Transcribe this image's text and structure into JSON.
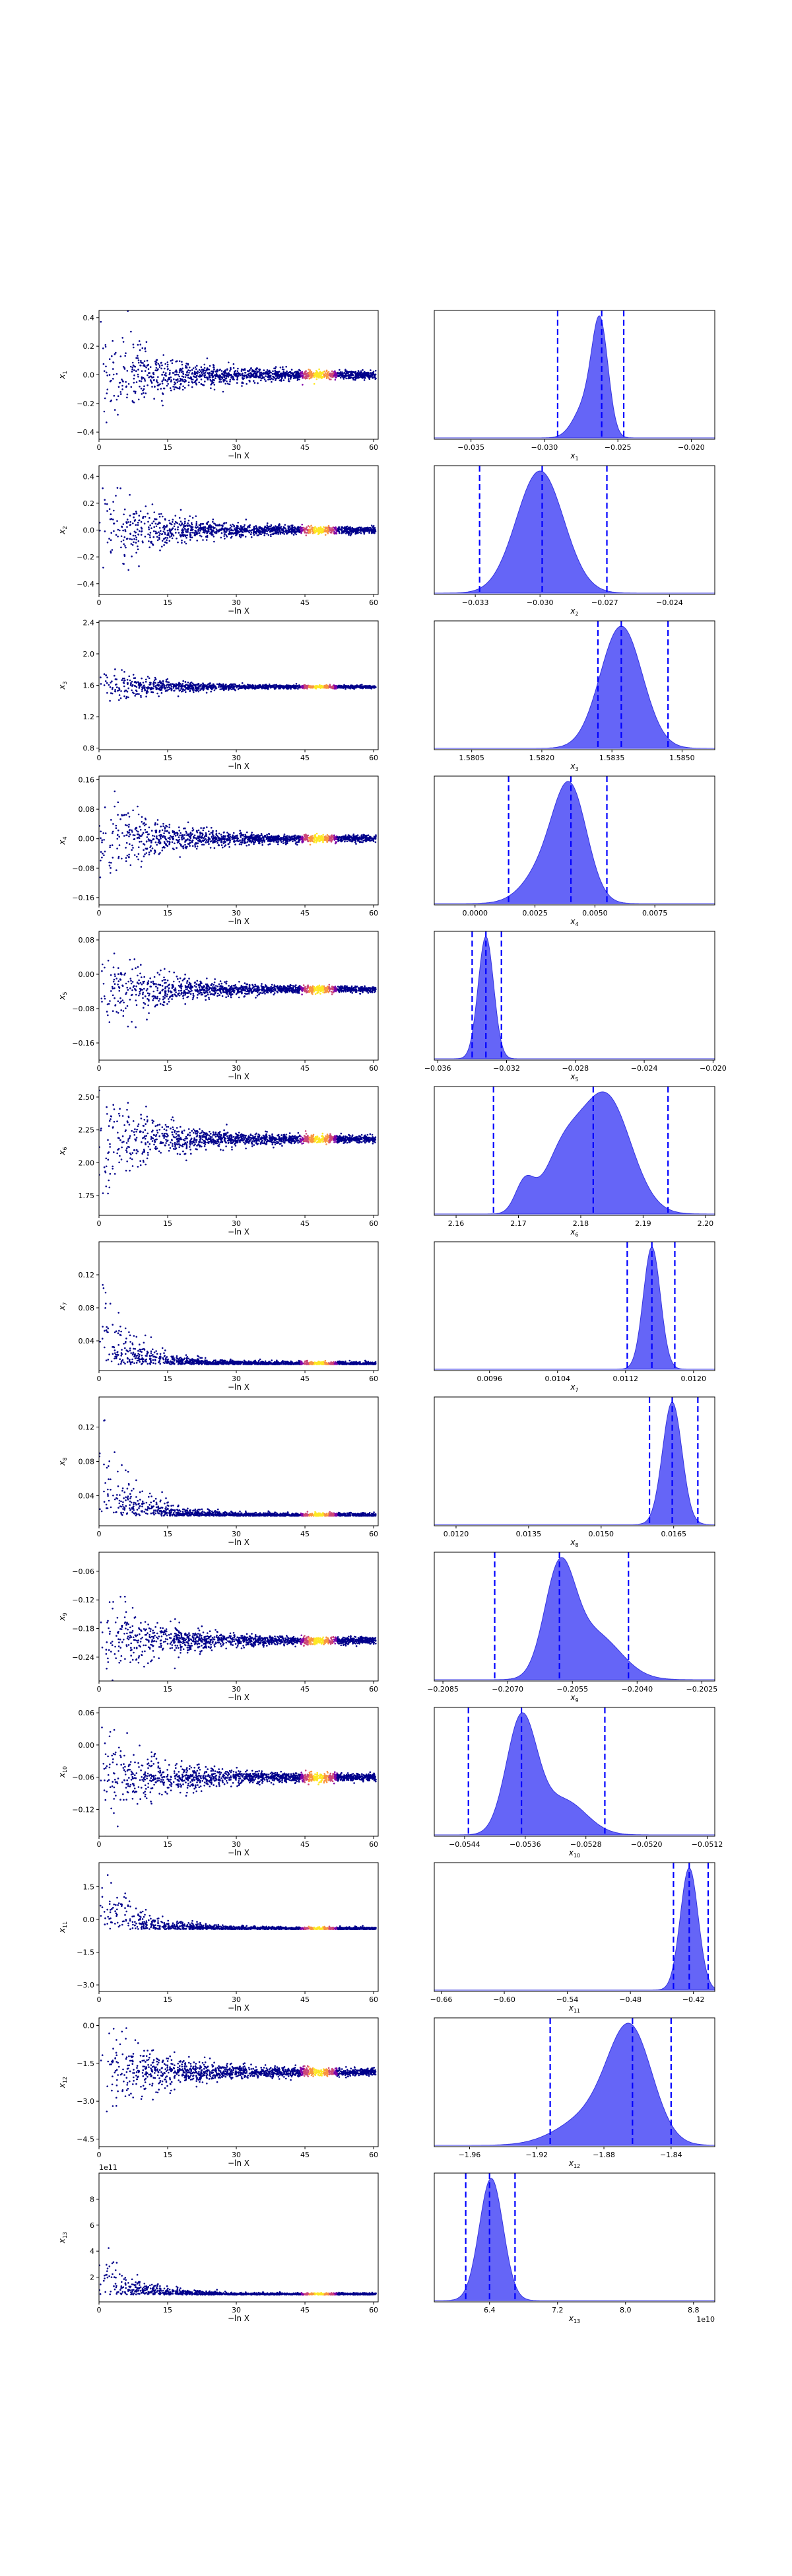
{
  "figure": {
    "scatter_xlabel": "−ln X",
    "scatter_xticks": [
      "0",
      "15",
      "30",
      "45",
      "60"
    ],
    "scatter_color": "#00008b",
    "hot_colors": [
      "#fde725",
      "#f89441",
      "#cc4778",
      "#7e03a8"
    ],
    "kde_fill": "#6565f7",
    "kde_edge": "#3535e0",
    "quantile_line": "#0000ff"
  },
  "chart_data": [
    {
      "type": "scatter",
      "parameter": "x1",
      "ylabel_main": "x",
      "ylabel_sub": "1",
      "yticks": [
        "0.4",
        "0.2",
        "0.0",
        "−0.2",
        "−0.4"
      ],
      "yrange": [
        -0.45,
        0.45
      ],
      "center": 0.0,
      "spread": 0.16,
      "trend": "converge",
      "kde": {
        "type": "area",
        "xlabel_main": "x",
        "xlabel_sub": "1",
        "xticks": [
          "−0.035",
          "−0.030",
          "−0.025",
          "−0.020"
        ],
        "xrange": [
          -0.0375,
          -0.0184
        ],
        "quantiles": [
          -0.0291,
          -0.0261,
          -0.0246
        ],
        "modes": [
          [
            -0.0262,
            0.00055,
            1.0
          ],
          [
            -0.0272,
            0.0008,
            0.3
          ]
        ],
        "offset_label": ""
      }
    },
    {
      "type": "scatter",
      "parameter": "x2",
      "ylabel_main": "x",
      "ylabel_sub": "2",
      "yticks": [
        "0.4",
        "0.2",
        "0.0",
        "−0.2",
        "−0.4"
      ],
      "yrange": [
        -0.48,
        0.48
      ],
      "center": 0.0,
      "spread": 0.14,
      "trend": "converge",
      "kde": {
        "type": "area",
        "xlabel_main": "x",
        "xlabel_sub": "2",
        "xticks": [
          "−0.033",
          "−0.030",
          "−0.027",
          "−0.024"
        ],
        "xrange": [
          -0.0349,
          -0.0219
        ],
        "quantiles": [
          -0.0328,
          -0.0299,
          -0.0269
        ],
        "modes": [
          [
            -0.03,
            0.0011,
            1.0
          ]
        ],
        "offset_label": ""
      }
    },
    {
      "type": "scatter",
      "parameter": "x3",
      "ylabel_main": "x",
      "ylabel_sub": "3",
      "yticks": [
        "2.4",
        "2.0",
        "1.6",
        "1.2",
        "0.8"
      ],
      "yrange": [
        0.78,
        2.42
      ],
      "center": 1.58,
      "spread": 0.1,
      "trend": "converge",
      "kde": {
        "type": "area",
        "xlabel_main": "x",
        "xlabel_sub": "3",
        "xticks": [
          "1.5805",
          "1.5820",
          "1.5835",
          "1.5850"
        ],
        "xrange": [
          1.5797,
          1.5857
        ],
        "quantiles": [
          1.5832,
          1.5837,
          1.5847
        ],
        "modes": [
          [
            1.5837,
            0.00045,
            1.0
          ]
        ],
        "offset_label": ""
      }
    },
    {
      "type": "scatter",
      "parameter": "x4",
      "ylabel_main": "x",
      "ylabel_sub": "4",
      "yticks": [
        "0.16",
        "0.08",
        "0.00",
        "−0.08",
        "−0.16"
      ],
      "yrange": [
        -0.18,
        0.17
      ],
      "center": 0.0,
      "spread": 0.05,
      "trend": "converge",
      "kde": {
        "type": "area",
        "xlabel_main": "x",
        "xlabel_sub": "4",
        "xticks": [
          "0.0000",
          "0.0025",
          "0.0050",
          "0.0075"
        ],
        "xrange": [
          -0.0017,
          0.01
        ],
        "quantiles": [
          0.0014,
          0.004,
          0.0055
        ],
        "modes": [
          [
            0.004,
            0.0007,
            1.0
          ],
          [
            0.003,
            0.0009,
            0.35
          ]
        ],
        "offset_label": ""
      }
    },
    {
      "type": "scatter",
      "parameter": "x5",
      "ylabel_main": "x",
      "ylabel_sub": "5",
      "yticks": [
        "0.08",
        "0.00",
        "−0.08",
        "−0.16"
      ],
      "yrange": [
        -0.2,
        0.1
      ],
      "center": -0.035,
      "spread": 0.04,
      "trend": "converge",
      "kde": {
        "type": "area",
        "xlabel_main": "x",
        "xlabel_sub": "5",
        "xticks": [
          "−0.036",
          "−0.032",
          "−0.028",
          "−0.024",
          "−0.020"
        ],
        "xrange": [
          -0.0362,
          -0.0199
        ],
        "quantiles": [
          -0.034,
          -0.0332,
          -0.0323
        ],
        "modes": [
          [
            -0.0332,
            0.00045,
            1.0
          ]
        ],
        "offset_label": ""
      }
    },
    {
      "type": "scatter",
      "parameter": "x6",
      "ylabel_main": "x",
      "ylabel_sub": "6",
      "yticks": [
        "2.50",
        "2.25",
        "2.00",
        "1.75"
      ],
      "yrange": [
        1.6,
        2.58
      ],
      "center": 2.18,
      "spread": 0.16,
      "trend": "converge",
      "kde": {
        "type": "area",
        "xlabel_main": "x",
        "xlabel_sub": "6",
        "xticks": [
          "2.16",
          "2.17",
          "2.18",
          "2.19",
          "2.20"
        ],
        "xrange": [
          2.1565,
          2.2015
        ],
        "quantiles": [
          2.166,
          2.182,
          2.194
        ],
        "modes": [
          [
            2.184,
            0.004,
            1.0
          ],
          [
            2.177,
            0.003,
            0.45
          ],
          [
            2.171,
            0.0015,
            0.25
          ]
        ],
        "offset_label": ""
      }
    },
    {
      "type": "scatter",
      "parameter": "x7",
      "ylabel_main": "x",
      "ylabel_sub": "7",
      "yticks": [
        "0.12",
        "0.08",
        "0.04"
      ],
      "yrange": [
        0.004,
        0.16
      ],
      "center": 0.0115,
      "spread": 0.03,
      "trend": "decay",
      "kde": {
        "type": "area",
        "xlabel_main": "x",
        "xlabel_sub": "7",
        "xticks": [
          "0.0096",
          "0.0104",
          "0.0112",
          "0.0120"
        ],
        "xrange": [
          0.00895,
          0.01225
        ],
        "quantiles": [
          0.01122,
          0.01151,
          0.01178
        ],
        "modes": [
          [
            0.01151,
            0.0001,
            1.0
          ]
        ],
        "offset_label": ""
      }
    },
    {
      "type": "scatter",
      "parameter": "x8",
      "ylabel_main": "x",
      "ylabel_sub": "8",
      "yticks": [
        "0.12",
        "0.08",
        "0.04"
      ],
      "yrange": [
        0.005,
        0.155
      ],
      "center": 0.0165,
      "spread": 0.03,
      "trend": "decay",
      "kde": {
        "type": "area",
        "xlabel_main": "x",
        "xlabel_sub": "8",
        "xticks": [
          "0.0120",
          "0.0135",
          "0.0150",
          "0.0165"
        ],
        "xrange": [
          0.01155,
          0.01735
        ],
        "quantiles": [
          0.016,
          0.01647,
          0.017
        ],
        "modes": [
          [
            0.01647,
            0.0002,
            1.0
          ]
        ],
        "offset_label": ""
      }
    },
    {
      "type": "scatter",
      "parameter": "x9",
      "ylabel_main": "x",
      "ylabel_sub": "9",
      "yticks": [
        "−0.06",
        "−0.12",
        "−0.18",
        "−0.24"
      ],
      "yrange": [
        -0.29,
        -0.02
      ],
      "center": -0.205,
      "spread": 0.04,
      "trend": "converge",
      "kde": {
        "type": "area",
        "xlabel_main": "x",
        "xlabel_sub": "9",
        "xticks": [
          "−0.2085",
          "−0.2070",
          "−0.2055",
          "−0.2040",
          "−0.2025"
        ],
        "xrange": [
          -0.2087,
          -0.2022
        ],
        "quantiles": [
          -0.2073,
          -0.2058,
          -0.2042
        ],
        "modes": [
          [
            -0.2058,
            0.00035,
            1.0
          ],
          [
            -0.205,
            0.0006,
            0.45
          ]
        ],
        "offset_label": ""
      }
    },
    {
      "type": "scatter",
      "parameter": "x10",
      "ylabel_main": "x",
      "ylabel_sub": "10",
      "yticks": [
        "0.06",
        "0.00",
        "−0.06",
        "−0.12"
      ],
      "yrange": [
        -0.17,
        0.07
      ],
      "center": -0.06,
      "spread": 0.04,
      "trend": "converge",
      "kde": {
        "type": "area",
        "xlabel_main": "x",
        "xlabel_sub": "10",
        "xticks": [
          "−0.0544",
          "−0.0536",
          "−0.0528",
          "−0.0520",
          "−0.0512"
        ],
        "xrange": [
          -0.0548,
          -0.0511
        ],
        "quantiles": [
          -0.05435,
          -0.05365,
          -0.05255
        ],
        "modes": [
          [
            -0.05365,
            0.0002,
            1.0
          ],
          [
            -0.0531,
            0.0003,
            0.3
          ]
        ],
        "offset_label": ""
      }
    },
    {
      "type": "scatter",
      "parameter": "x11",
      "ylabel_main": "x",
      "ylabel_sub": "11",
      "yticks": [
        "1.5",
        "0.0",
        "−1.5",
        "−3.0"
      ],
      "yrange": [
        -3.3,
        2.6
      ],
      "center": -0.45,
      "spread": 0.9,
      "trend": "decay",
      "kde": {
        "type": "area",
        "xlabel_main": "x",
        "xlabel_sub": "11",
        "xticks": [
          "−0.66",
          "−0.60",
          "−0.54",
          "−0.48",
          "−0.42"
        ],
        "xrange": [
          -0.6666,
          -0.3997
        ],
        "quantiles": [
          -0.439,
          -0.424,
          -0.406
        ],
        "modes": [
          [
            -0.424,
            0.0085,
            1.0
          ]
        ],
        "offset_label": ""
      }
    },
    {
      "type": "scatter",
      "parameter": "x12",
      "ylabel_main": "x",
      "ylabel_sub": "12",
      "yticks": [
        "0.0",
        "−1.5",
        "−3.0",
        "−4.5"
      ],
      "yrange": [
        -4.8,
        0.3
      ],
      "center": -1.85,
      "spread": 0.8,
      "trend": "converge",
      "kde": {
        "type": "area",
        "xlabel_main": "x",
        "xlabel_sub": "12",
        "xticks": [
          "−1.96",
          "−1.92",
          "−1.88",
          "−1.84"
        ],
        "xrange": [
          -1.981,
          -1.814
        ],
        "quantiles": [
          -1.912,
          -1.863,
          -1.84
        ],
        "modes": [
          [
            -1.864,
            0.013,
            1.0
          ],
          [
            -1.885,
            0.02,
            0.3
          ]
        ],
        "offset_label": ""
      }
    },
    {
      "type": "scatter",
      "parameter": "x13",
      "ylabel_main": "x",
      "ylabel_sub": "13",
      "yticks": [
        "8",
        "6",
        "4",
        "2"
      ],
      "yrange": [
        0.1,
        10.0
      ],
      "center": 0.65,
      "spread": 0.8,
      "trend": "decay_low",
      "offset_label": "1e11",
      "kde": {
        "type": "area",
        "xlabel_main": "x",
        "xlabel_sub": "13",
        "xticks": [
          "6.4",
          "7.2",
          "8.0",
          "8.8"
        ],
        "xrange": [
          5.75,
          9.05
        ],
        "quantiles": [
          6.12,
          6.4,
          6.7
        ],
        "modes": [
          [
            6.42,
            0.14,
            1.0
          ]
        ],
        "offset_label": "1e10"
      }
    }
  ]
}
